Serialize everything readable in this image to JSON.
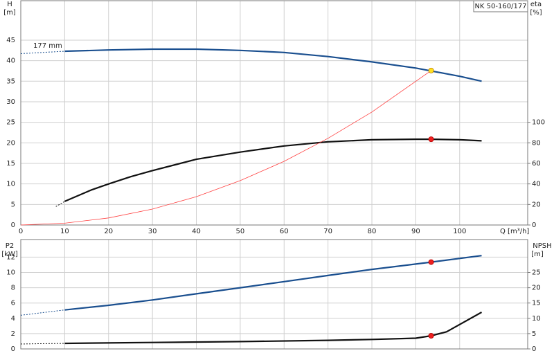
{
  "chart_data": [
    {
      "type": "line",
      "ylabel": "H",
      "yunit": "[m]",
      "y2label": "eta",
      "y2unit": "[%]",
      "xlabel": "Q [m³/h]",
      "model": "NK 50-160/177",
      "annotation": "177 mm",
      "xlim": [
        0,
        115.5
      ],
      "xticks": [
        0,
        10,
        20,
        30,
        40,
        50,
        60,
        70,
        80,
        90,
        100
      ],
      "show_xtick_labels": true,
      "ylim": [
        0,
        54.6
      ],
      "yticks": [
        0,
        5,
        10,
        15,
        20,
        25,
        30,
        35,
        40,
        45
      ],
      "y2lim": [
        0,
        218.4
      ],
      "y2ticks": [
        0,
        20,
        40,
        60,
        80,
        100
      ],
      "grid": true,
      "series": [
        {
          "color": "#1a4f8f",
          "dashed": true,
          "x": [
            0,
            10
          ],
          "values": [
            41.7,
            42.3
          ]
        },
        {
          "color": "#1a4f8f",
          "x": [
            10,
            20,
            30,
            40,
            50,
            60,
            70,
            80,
            90,
            100,
            105
          ],
          "values": [
            42.3,
            42.6,
            42.8,
            42.8,
            42.5,
            42.0,
            41.0,
            39.7,
            38.2,
            36.2,
            35.0
          ]
        },
        {
          "color": "#111111",
          "dashed": true,
          "axis": "y2",
          "x": [
            8,
            10
          ],
          "values": [
            18,
            23
          ]
        },
        {
          "color": "#111111",
          "axis": "y2",
          "x": [
            10,
            16,
            20,
            25,
            30,
            40,
            50,
            60,
            70,
            80,
            90,
            93.5,
            100,
            105
          ],
          "values": [
            23,
            34,
            40,
            47,
            53,
            64,
            71,
            77,
            81,
            83,
            83.5,
            83.5,
            83,
            82
          ]
        },
        {
          "color": "#ff4040",
          "thin": true,
          "x": [
            0,
            10,
            20,
            30,
            40,
            50,
            60,
            70,
            80,
            93.5
          ],
          "values": [
            0,
            0.43,
            1.72,
            3.87,
            6.9,
            10.8,
            15.5,
            21.1,
            27.5,
            37.6
          ]
        },
        {
          "color": "#ffe020",
          "marker": true,
          "x": [
            93.5
          ],
          "values": [
            37.6
          ]
        },
        {
          "color": "#ee2020",
          "marker": true,
          "axis": "y2",
          "x": [
            93.5
          ],
          "values": [
            83.5
          ]
        }
      ]
    },
    {
      "type": "line",
      "ylabel": "P2",
      "yunit": "[kW]",
      "y2label": "NPSH",
      "y2unit": "[m]",
      "xlim": [
        0,
        115.5
      ],
      "xticks": [
        0,
        10,
        20,
        30,
        40,
        50,
        60,
        70,
        80,
        90,
        100
      ],
      "show_xtick_labels": false,
      "ylim": [
        0,
        14.3
      ],
      "yticks": [
        0,
        2,
        4,
        6,
        8,
        10,
        12
      ],
      "y2lim": [
        0,
        35.75
      ],
      "y2ticks": [
        0,
        5,
        10,
        15,
        20,
        25
      ],
      "grid": true,
      "series": [
        {
          "color": "#1a4f8f",
          "dashed": true,
          "x": [
            0,
            10
          ],
          "values": [
            4.4,
            5.1
          ]
        },
        {
          "color": "#1a4f8f",
          "x": [
            10,
            20,
            30,
            40,
            50,
            60,
            70,
            80,
            90,
            93.5,
            105
          ],
          "values": [
            5.1,
            5.7,
            6.4,
            7.2,
            8.0,
            8.8,
            9.6,
            10.4,
            11.1,
            11.35,
            12.2
          ]
        },
        {
          "color": "#111111",
          "dashed": true,
          "axis": "y2",
          "x": [
            0,
            10
          ],
          "values": [
            1.6,
            1.8
          ]
        },
        {
          "color": "#111111",
          "axis": "y2",
          "x": [
            10,
            30,
            50,
            70,
            80,
            90,
            93.5,
            97,
            105
          ],
          "values": [
            1.8,
            2.1,
            2.4,
            2.8,
            3.1,
            3.5,
            4.3,
            5.6,
            12.0
          ]
        },
        {
          "color": "#ee2020",
          "marker": true,
          "x": [
            93.5
          ],
          "values": [
            11.35
          ]
        },
        {
          "color": "#ee2020",
          "marker": true,
          "axis": "y2",
          "x": [
            93.5
          ],
          "values": [
            4.3
          ]
        }
      ]
    }
  ]
}
